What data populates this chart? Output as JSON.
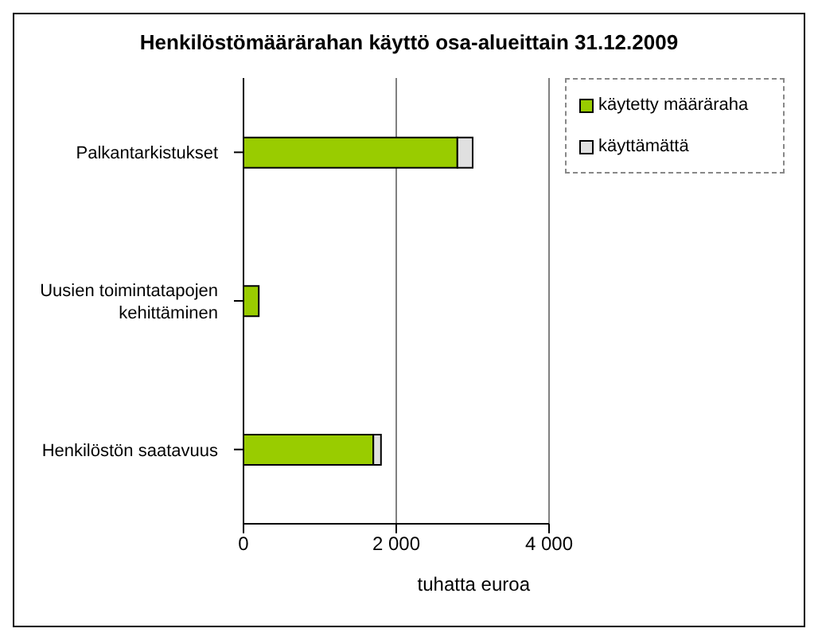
{
  "chart_data": {
    "type": "bar",
    "orientation": "horizontal",
    "stacked": true,
    "title": "Henkilöstömäärärahan käyttö osa-alueittain 31.12.2009",
    "xlabel": "tuhatta euroa",
    "categories": [
      "Palkantarkistukset",
      "Uusien toimintatapojen kehittäminen",
      "Henkilöstön saatavuus"
    ],
    "series": [
      {
        "name": "käytetty määräraha",
        "color": "#99cc00",
        "values": [
          2800,
          200,
          1700
        ]
      },
      {
        "name": "käyttämättä",
        "color": "#e0e0e0",
        "values": [
          200,
          null,
          100
        ]
      }
    ],
    "xlim": [
      0,
      4000
    ],
    "xticks": [
      {
        "value": 0,
        "label": "0"
      },
      {
        "value": 2000,
        "label": "2 000"
      },
      {
        "value": 4000,
        "label": "4 000"
      }
    ],
    "grid": "x",
    "legend": "top right"
  }
}
